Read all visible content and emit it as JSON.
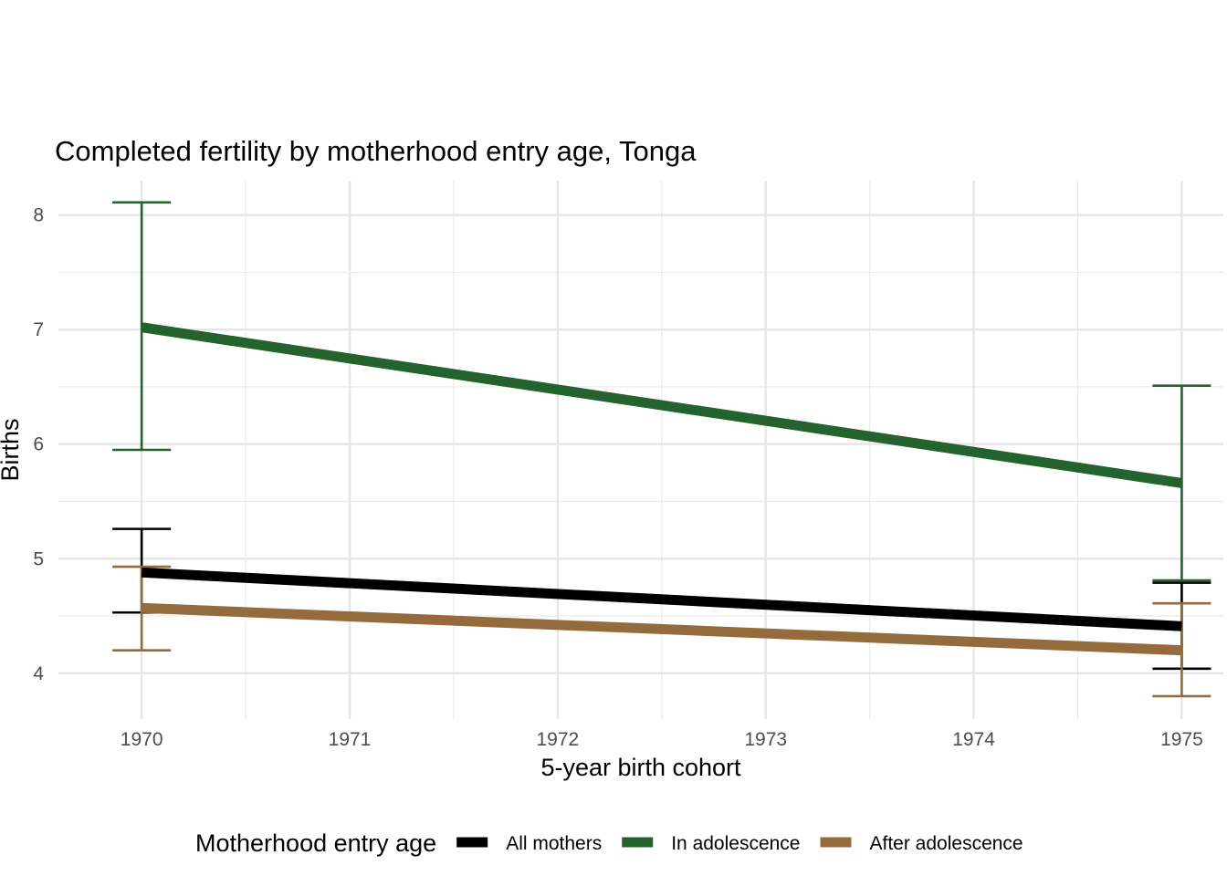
{
  "chart_data": {
    "type": "line",
    "title": "Completed fertility by motherhood entry age,  Tonga",
    "xlabel": "5-year birth cohort",
    "ylabel": "Births",
    "x": [
      1970,
      1975
    ],
    "x_ticks": [
      1970,
      1971,
      1972,
      1973,
      1974,
      1975
    ],
    "y_ticks": [
      4,
      5,
      6,
      7,
      8
    ],
    "xlim": [
      1969.6,
      1975.2
    ],
    "ylim": [
      3.6,
      8.3
    ],
    "grid": true,
    "legend_title": "Motherhood entry age",
    "legend_position": "bottom",
    "series": [
      {
        "name": "All mothers",
        "color": "#000000",
        "values": [
          4.88,
          4.41
        ],
        "lower": [
          4.53,
          4.04
        ],
        "upper": [
          5.26,
          4.79
        ]
      },
      {
        "name": "In adolescence",
        "color": "#24622e",
        "values": [
          7.02,
          5.66
        ],
        "lower": [
          5.95,
          4.81
        ],
        "upper": [
          8.11,
          6.51
        ]
      },
      {
        "name": "After adolescence",
        "color": "#946b3c",
        "values": [
          4.57,
          4.2
        ],
        "lower": [
          4.2,
          3.8
        ],
        "upper": [
          4.93,
          4.61
        ]
      }
    ]
  }
}
